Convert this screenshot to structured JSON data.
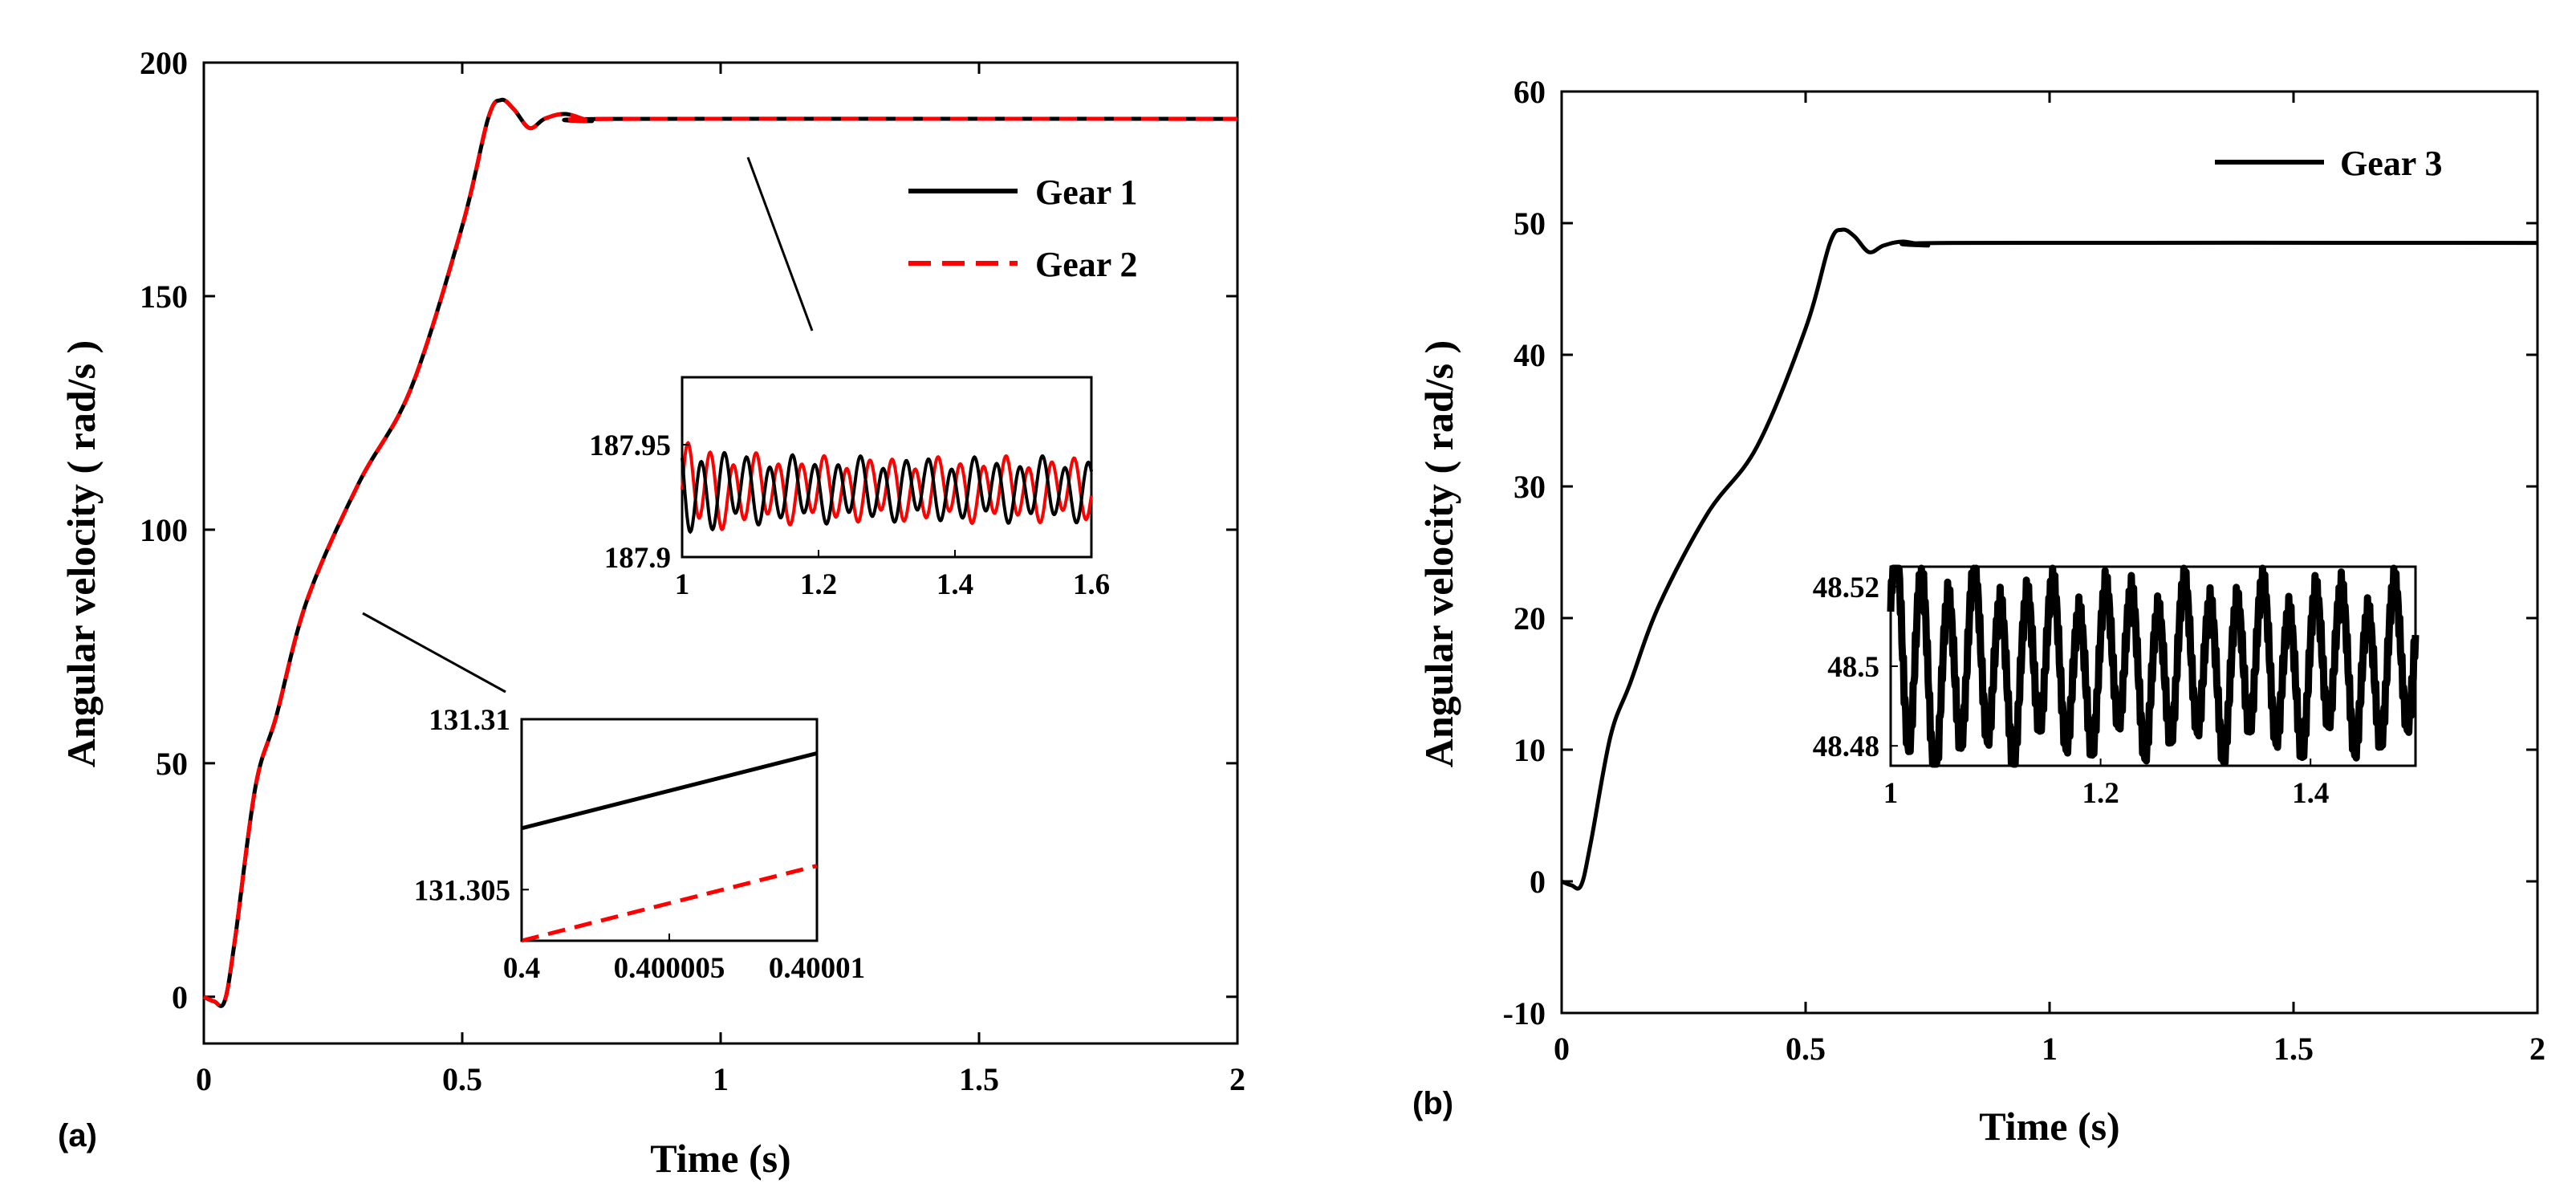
{
  "chart_data": [
    {
      "type": "line",
      "panel_label": "(a)",
      "xlabel": "Time (s)",
      "ylabel": "Angular velocity ( rad/s )",
      "xlim": [
        0,
        2
      ],
      "ylim": [
        -10,
        200
      ],
      "xticks": [
        "0",
        "0.5",
        "1",
        "1.5",
        "2"
      ],
      "yticks": [
        "0",
        "50",
        "100",
        "150",
        "200"
      ],
      "legend_position": "top-right",
      "series": [
        {
          "name": "Gear 1",
          "color": "#000000",
          "style": "solid",
          "x": [
            0,
            0.02,
            0.04,
            0.06,
            0.1,
            0.14,
            0.2,
            0.3,
            0.4,
            0.5,
            0.55,
            0.575,
            0.6,
            0.63,
            0.66,
            0.7,
            0.75,
            0.8,
            2.0
          ],
          "y": [
            0,
            -1,
            -1,
            12,
            45,
            60,
            85,
            110,
            130,
            165,
            188,
            192,
            190,
            186,
            188,
            189,
            187.5,
            187.95,
            187.95
          ]
        },
        {
          "name": "Gear 2",
          "color": "#ff0000",
          "style": "dashed",
          "x": [
            0,
            0.02,
            0.04,
            0.06,
            0.1,
            0.14,
            0.2,
            0.3,
            0.4,
            0.5,
            0.55,
            0.575,
            0.6,
            0.63,
            0.66,
            0.7,
            0.75,
            0.8,
            2.0
          ],
          "y": [
            0,
            -1,
            -1,
            12,
            45,
            60,
            85,
            110,
            130,
            165,
            188,
            192,
            190,
            186,
            188,
            189,
            187.5,
            187.95,
            187.95
          ]
        }
      ],
      "insets": [
        {
          "xlim": [
            1,
            1.6
          ],
          "ylim": [
            187.9,
            187.98
          ],
          "xticks": [
            "1",
            "1.2",
            "1.4",
            "1.6"
          ],
          "yticks": [
            "187.9",
            "187.95"
          ],
          "oscillation": {
            "center": 187.93,
            "amplitude": 0.015,
            "cycles": 18
          }
        },
        {
          "xlim": [
            0.4,
            0.40001
          ],
          "ylim": [
            131.3035,
            131.31
          ],
          "xticks": [
            "0.4",
            "0.400005",
            "0.40001"
          ],
          "yticks": [
            "131.305",
            "131.31"
          ],
          "series": [
            {
              "name": "Gear 1",
              "x": [
                0.4,
                0.40001
              ],
              "y": [
                131.3068,
                131.309
              ]
            },
            {
              "name": "Gear 2",
              "x": [
                0.4,
                0.40001
              ],
              "y": [
                131.3035,
                131.3057
              ]
            }
          ]
        }
      ]
    },
    {
      "type": "line",
      "panel_label": "(b)",
      "xlabel": "Time (s)",
      "ylabel": "Angular velocity ( rad/s )",
      "xlim": [
        0,
        2
      ],
      "ylim": [
        -10,
        60
      ],
      "xticks": [
        "0",
        "0.5",
        "1",
        "1.5",
        "2"
      ],
      "yticks": [
        "-10",
        "0",
        "10",
        "20",
        "30",
        "40",
        "50",
        "60"
      ],
      "legend_position": "top-right",
      "series": [
        {
          "name": "Gear 3",
          "color": "#000000",
          "style": "solid",
          "x": [
            0,
            0.02,
            0.04,
            0.06,
            0.1,
            0.14,
            0.2,
            0.3,
            0.4,
            0.5,
            0.55,
            0.575,
            0.6,
            0.63,
            0.66,
            0.7,
            0.75,
            0.8,
            2.0
          ],
          "y": [
            0,
            -0.3,
            -0.3,
            3,
            11,
            15,
            21,
            28,
            33,
            42,
            48.5,
            49.5,
            49,
            47.8,
            48.3,
            48.6,
            48.3,
            48.5,
            48.5
          ]
        }
      ],
      "insets": [
        {
          "xlim": [
            1,
            1.5
          ],
          "ylim": [
            48.475,
            48.525
          ],
          "xticks": [
            "1",
            "1.2",
            "1.4"
          ],
          "yticks": [
            "48.48",
            "48.5",
            "48.52"
          ],
          "oscillation": {
            "center": 48.5,
            "amplitude": 0.022,
            "cycles": 20
          }
        }
      ]
    }
  ]
}
